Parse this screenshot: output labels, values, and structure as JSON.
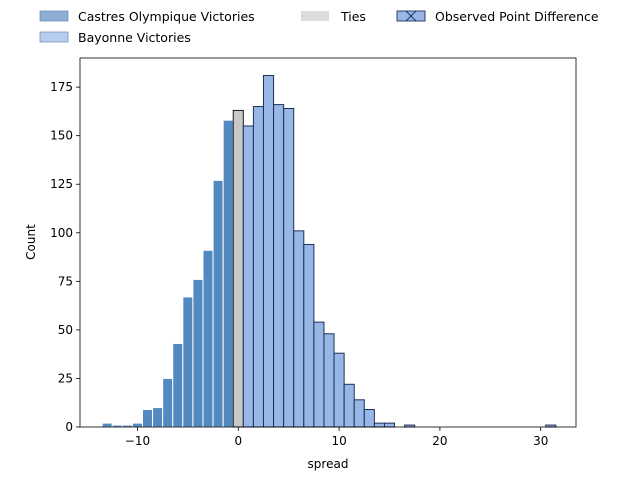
{
  "chart_data": {
    "type": "bar",
    "xlabel": "spread",
    "ylabel": "Count",
    "xlim": [
      -15.7,
      33.5
    ],
    "ylim": [
      0,
      190
    ],
    "x_ticks": [
      -10,
      0,
      10,
      20,
      30
    ],
    "y_ticks": [
      0,
      25,
      50,
      75,
      100,
      125,
      150,
      175
    ],
    "bin_width": 1,
    "grid": false,
    "legend": {
      "placement": "top, above axes",
      "entries": [
        {
          "label": "Castres Olympique Victories",
          "color": "#8eafd4"
        },
        {
          "label": "Ties",
          "color": "#dcdcdc"
        },
        {
          "label": "Observed Point Difference",
          "color": "#97b8e6"
        },
        {
          "label": "Bayonne Victories",
          "color": "#b7cdf0"
        }
      ]
    },
    "series": [
      {
        "name": "Castres Olympique Victories",
        "color": "#5289c1",
        "x": [
          -13,
          -12,
          -11,
          -10,
          -9,
          -8,
          -7,
          -6,
          -5,
          -4,
          -3,
          -2,
          -1
        ],
        "values": [
          2,
          1,
          1,
          2,
          9,
          10,
          25,
          43,
          67,
          76,
          91,
          127,
          158
        ]
      },
      {
        "name": "Ties",
        "color": "#c8c8c8",
        "x": [
          0
        ],
        "values": [
          163
        ]
      },
      {
        "name": "Bayonne Victories",
        "color": "#97b8e6",
        "x": [
          1,
          2,
          3,
          4,
          5,
          6,
          7,
          8,
          9,
          10,
          11,
          12,
          13,
          14,
          15,
          17,
          31
        ],
        "values": [
          155,
          165,
          181,
          166,
          164,
          101,
          94,
          54,
          48,
          38,
          22,
          14,
          9,
          2,
          2,
          1,
          1
        ]
      }
    ]
  }
}
